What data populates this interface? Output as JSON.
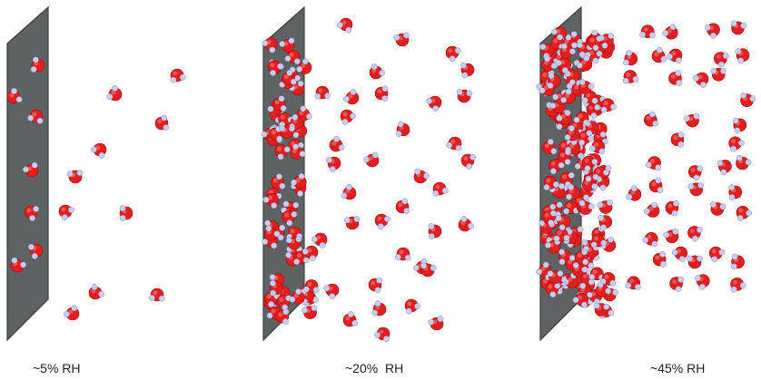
{
  "panels": [
    {
      "label": "~5% RH"
    },
    {
      "label": "~20%  RH"
    },
    {
      "label": "~45% RH"
    }
  ],
  "colors": {
    "wall_front": "#5f6262",
    "wall_edge": "#3e4141",
    "oxygen": "#e21f1f",
    "oxygen_highlight": "#ff6b6b",
    "hydrogen": "#c9cbef"
  },
  "legend": {
    "molecule": "water-molecule",
    "surface": "solid-surface"
  }
}
